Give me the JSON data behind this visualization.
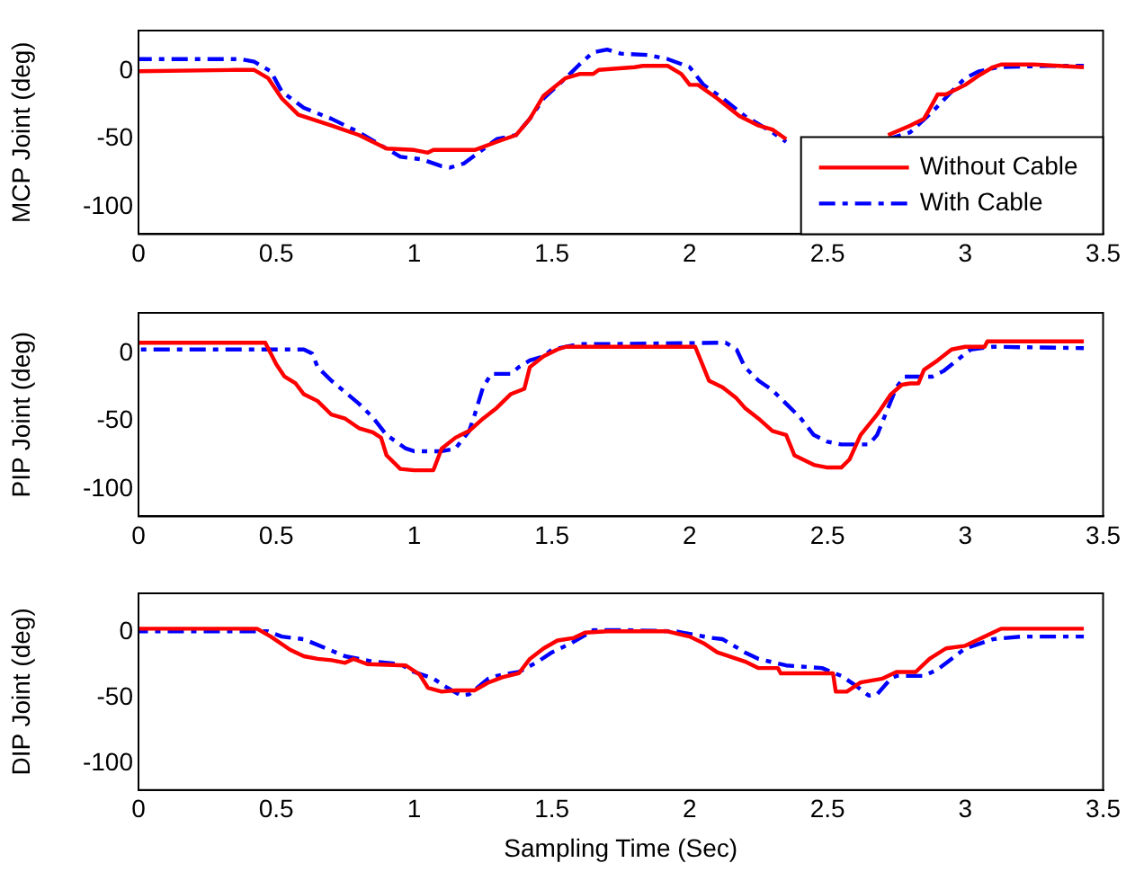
{
  "chart_data": [
    {
      "type": "line",
      "ylabel": "MCP Joint (deg)",
      "xlim": [
        0,
        3.5
      ],
      "xticks": [
        0,
        0.5,
        1,
        1.5,
        2,
        2.5,
        3,
        3.5
      ],
      "ylim": [
        -120,
        30
      ],
      "yticks": [
        -100,
        -50,
        0
      ],
      "grid": false,
      "legend": "bottom right",
      "marker": "none",
      "series": [
        {
          "name": "Without Cable",
          "color": "#ff0000",
          "line_style": "solid",
          "x": [
            0,
            0.35,
            0.42,
            0.47,
            0.52,
            0.58,
            0.7,
            0.8,
            0.9,
            1.0,
            1.05,
            1.07,
            1.22,
            1.3,
            1.37,
            1.42,
            1.47,
            1.55,
            1.6,
            1.65,
            1.67,
            1.8,
            1.83,
            1.92,
            1.97,
            2.0,
            2.03,
            2.1,
            2.18,
            2.25,
            2.3,
            2.35,
            2.5,
            2.72,
            2.8,
            2.85,
            2.87,
            2.9,
            2.93,
            3.0,
            3.05,
            3.1,
            3.13,
            3.25,
            3.43
          ],
          "values": [
            0,
            1,
            1,
            -5,
            -20,
            -32,
            -40,
            -47,
            -57,
            -58,
            -60,
            -58,
            -58,
            -52,
            -47,
            -35,
            -18,
            -5,
            -2,
            -2,
            1,
            3,
            4,
            4,
            -2,
            -10,
            -10,
            -20,
            -33,
            -40,
            -43,
            -50,
            null,
            -47,
            -40,
            -35,
            -28,
            -17,
            -17,
            -10,
            -3,
            3,
            5,
            5,
            3
          ]
        },
        {
          "name": "With Cable",
          "color": "#0000ff",
          "line_style": "dashed",
          "x": [
            0,
            0.37,
            0.42,
            0.48,
            0.52,
            0.6,
            0.7,
            0.8,
            0.9,
            0.95,
            1.03,
            1.1,
            1.13,
            1.18,
            1.22,
            1.3,
            1.37,
            1.42,
            1.47,
            1.55,
            1.6,
            1.65,
            1.7,
            1.75,
            1.85,
            1.92,
            2.0,
            2.05,
            2.12,
            2.2,
            2.3,
            2.35,
            2.5,
            2.72,
            2.8,
            2.88,
            2.95,
            3.0,
            3.05,
            3.12,
            3.3,
            3.43
          ],
          "values": [
            9,
            9,
            7,
            0,
            -15,
            -27,
            -35,
            -45,
            -57,
            -63,
            -65,
            -70,
            -71,
            -68,
            -62,
            -50,
            -47,
            -35,
            -20,
            -5,
            5,
            14,
            16,
            13,
            12,
            9,
            3,
            -10,
            -20,
            -33,
            -45,
            -52,
            null,
            -50,
            -45,
            -30,
            -15,
            -5,
            0,
            3,
            4,
            4
          ]
        }
      ]
    },
    {
      "type": "line",
      "ylabel": "PIP Joint (deg)",
      "xlim": [
        0,
        3.5
      ],
      "xticks": [
        0,
        0.5,
        1,
        1.5,
        2,
        2.5,
        3,
        3.5
      ],
      "ylim": [
        -120,
        30
      ],
      "yticks": [
        -100,
        -50,
        0
      ],
      "grid": false,
      "marker": "none",
      "series": [
        {
          "color": "#ff0000",
          "line_style": "solid",
          "x": [
            0,
            0.46,
            0.5,
            0.53,
            0.57,
            0.6,
            0.65,
            0.7,
            0.75,
            0.8,
            0.85,
            0.88,
            0.9,
            0.95,
            1.0,
            1.07,
            1.1,
            1.15,
            1.2,
            1.25,
            1.3,
            1.35,
            1.4,
            1.42,
            1.47,
            1.52,
            1.55,
            2.02,
            2.05,
            2.07,
            2.12,
            2.17,
            2.2,
            2.25,
            2.3,
            2.35,
            2.38,
            2.45,
            2.5,
            2.55,
            2.58,
            2.62,
            2.68,
            2.73,
            2.77,
            2.8,
            2.83,
            2.85,
            2.9,
            2.95,
            3.0,
            3.07,
            3.08,
            3.43
          ],
          "values": [
            8,
            8,
            -8,
            -17,
            -22,
            -30,
            -35,
            -45,
            -48,
            -55,
            -58,
            -62,
            -75,
            -85,
            -86,
            -86,
            -70,
            -62,
            -57,
            -48,
            -40,
            -30,
            -26,
            -10,
            -2,
            3,
            5,
            5,
            -10,
            -20,
            -25,
            -33,
            -40,
            -48,
            -57,
            -60,
            -75,
            -82,
            -84,
            -84,
            -78,
            -60,
            -45,
            -30,
            -23,
            -22,
            -22,
            -12,
            -5,
            3,
            5,
            5,
            9,
            9
          ]
        },
        {
          "color": "#0000ff",
          "line_style": "dashed",
          "x": [
            0,
            0.6,
            0.63,
            0.65,
            0.7,
            0.8,
            0.85,
            0.9,
            0.97,
            1.0,
            1.1,
            1.15,
            1.2,
            1.22,
            1.25,
            1.28,
            1.35,
            1.38,
            1.42,
            1.47,
            1.5,
            1.6,
            1.7,
            2.13,
            2.17,
            2.2,
            2.25,
            2.3,
            2.35,
            2.4,
            2.45,
            2.5,
            2.55,
            2.65,
            2.68,
            2.72,
            2.75,
            2.78,
            2.88,
            2.92,
            2.97,
            3.0,
            3.02,
            3.1,
            3.43
          ],
          "values": [
            3,
            3,
            0,
            -10,
            -20,
            -37,
            -47,
            -60,
            -70,
            -72,
            -72,
            -70,
            -57,
            -45,
            -25,
            -15,
            -15,
            -10,
            -5,
            -2,
            3,
            7,
            7,
            8,
            3,
            -10,
            -20,
            -27,
            -37,
            -47,
            -60,
            -65,
            -67,
            -67,
            -60,
            -40,
            -25,
            -17,
            -17,
            -13,
            -5,
            0,
            3,
            5,
            4
          ]
        }
      ]
    },
    {
      "type": "line",
      "ylabel": "DIP Joint (deg)",
      "xlabel": "Sampling Time (Sec)",
      "xlim": [
        0,
        3.5
      ],
      "xticks": [
        0,
        0.5,
        1,
        1.5,
        2,
        2.5,
        3,
        3.5
      ],
      "ylim": [
        -120,
        30
      ],
      "yticks": [
        -100,
        -50,
        0
      ],
      "grid": false,
      "marker": "none",
      "series": [
        {
          "color": "#ff0000",
          "line_style": "solid",
          "x": [
            0,
            0.43,
            0.48,
            0.55,
            0.6,
            0.65,
            0.7,
            0.75,
            0.78,
            0.83,
            0.97,
            1.02,
            1.05,
            1.1,
            1.15,
            1.22,
            1.27,
            1.32,
            1.38,
            1.42,
            1.47,
            1.52,
            1.58,
            1.62,
            1.7,
            1.92,
            2.0,
            2.05,
            2.1,
            2.2,
            2.25,
            2.32,
            2.33,
            2.52,
            2.53,
            2.57,
            2.62,
            2.7,
            2.75,
            2.82,
            2.87,
            2.93,
            3.0,
            3.05,
            3.1,
            3.13,
            3.43
          ],
          "values": [
            3,
            3,
            -3,
            -13,
            -18,
            -20,
            -21,
            -23,
            -20,
            -24,
            -25,
            -32,
            -42,
            -45,
            -44,
            -44,
            -38,
            -34,
            -31,
            -20,
            -12,
            -6,
            -4,
            0,
            1,
            1,
            -3,
            -8,
            -15,
            -22,
            -27,
            -27,
            -31,
            -31,
            -45,
            -45,
            -38,
            -35,
            -30,
            -30,
            -20,
            -12,
            -10,
            -5,
            0,
            3,
            3
          ]
        },
        {
          "color": "#0000ff",
          "line_style": "dashed",
          "x": [
            0,
            0.47,
            0.52,
            0.6,
            0.68,
            0.75,
            0.85,
            0.95,
            1.0,
            1.07,
            1.12,
            1.17,
            1.2,
            1.27,
            1.3,
            1.35,
            1.38,
            1.45,
            1.5,
            1.57,
            1.62,
            1.65,
            1.75,
            1.95,
            2.0,
            2.08,
            2.12,
            2.2,
            2.25,
            2.35,
            2.48,
            2.55,
            2.6,
            2.65,
            2.68,
            2.73,
            2.75,
            2.85,
            2.9,
            2.95,
            3.0,
            3.1,
            3.2,
            3.43
          ],
          "values": [
            1,
            1,
            -3,
            -5,
            -12,
            -18,
            -22,
            -24,
            -30,
            -35,
            -42,
            -48,
            -47,
            -35,
            -33,
            -31,
            -30,
            -22,
            -15,
            -8,
            -2,
            2,
            2,
            1,
            -1,
            -4,
            -5,
            -15,
            -20,
            -25,
            -27,
            -33,
            -40,
            -48,
            -47,
            -35,
            -33,
            -33,
            -28,
            -20,
            -12,
            -5,
            -3,
            -3
          ]
        }
      ]
    }
  ]
}
